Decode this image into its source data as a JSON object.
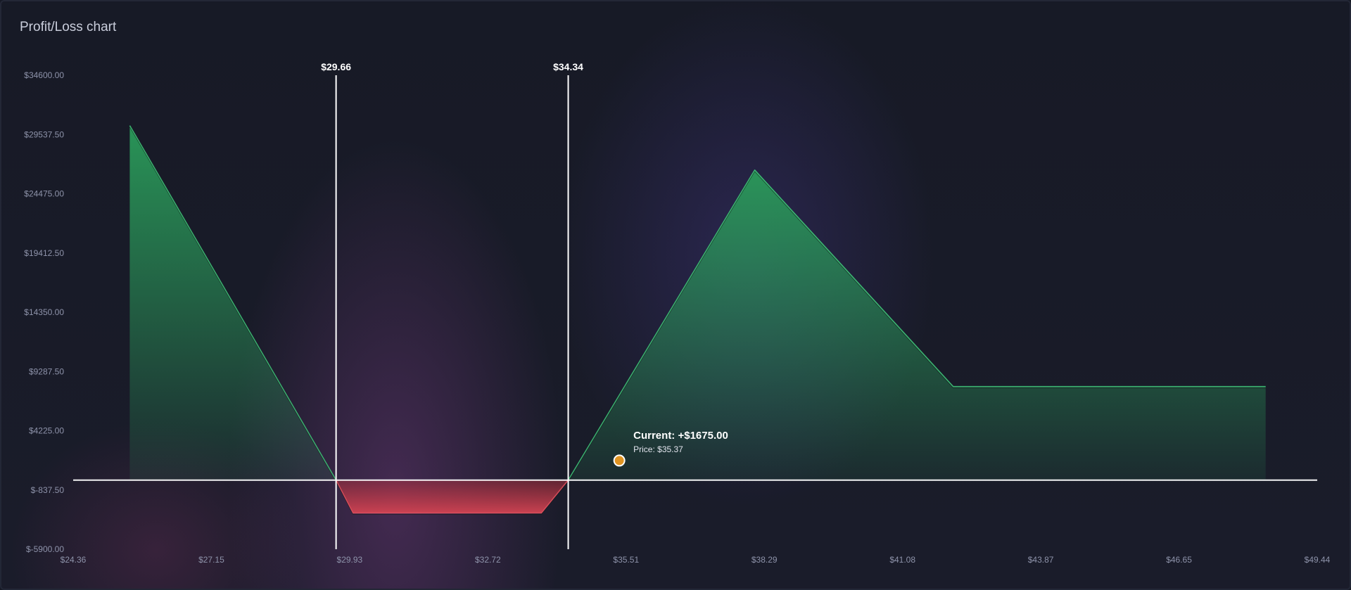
{
  "header": {
    "title": "Profit/Loss chart"
  },
  "chart_data": {
    "type": "area",
    "title": "Profit/Loss chart",
    "xlim": [
      24.36,
      49.44
    ],
    "ylim": [
      -5900,
      34600
    ],
    "x_tick_labels": [
      "$24.36",
      "$27.15",
      "$29.93",
      "$32.72",
      "$35.51",
      "$38.29",
      "$41.08",
      "$43.87",
      "$46.65",
      "$49.44"
    ],
    "y_tick_labels": [
      "$34600.00",
      "$29537.50",
      "$24475.00",
      "$19412.50",
      "$14350.00",
      "$9287.50",
      "$4225.00",
      "$-837.50",
      "$-5900.00"
    ],
    "series": [
      {
        "x": [
          25.5,
          29.66,
          30.0,
          33.8,
          34.34,
          38.1,
          42.1,
          48.4
        ],
        "y": [
          30300,
          0,
          -2800,
          -2800,
          0,
          26500,
          8000,
          8000
        ]
      }
    ],
    "bounds": [
      {
        "value": 29.66,
        "label": "$29.66"
      },
      {
        "value": 34.34,
        "label": "$34.34"
      }
    ],
    "current": {
      "x": 35.37,
      "y": 1675,
      "label": "Current: +$1675.00",
      "price_label": "Price: $35.37"
    },
    "colors": {
      "profit": "#2b9a5a",
      "loss": "#d2404f",
      "current_marker": "#e09422",
      "bound_line": "#ffffff",
      "zero_line": "#ffffff"
    }
  }
}
